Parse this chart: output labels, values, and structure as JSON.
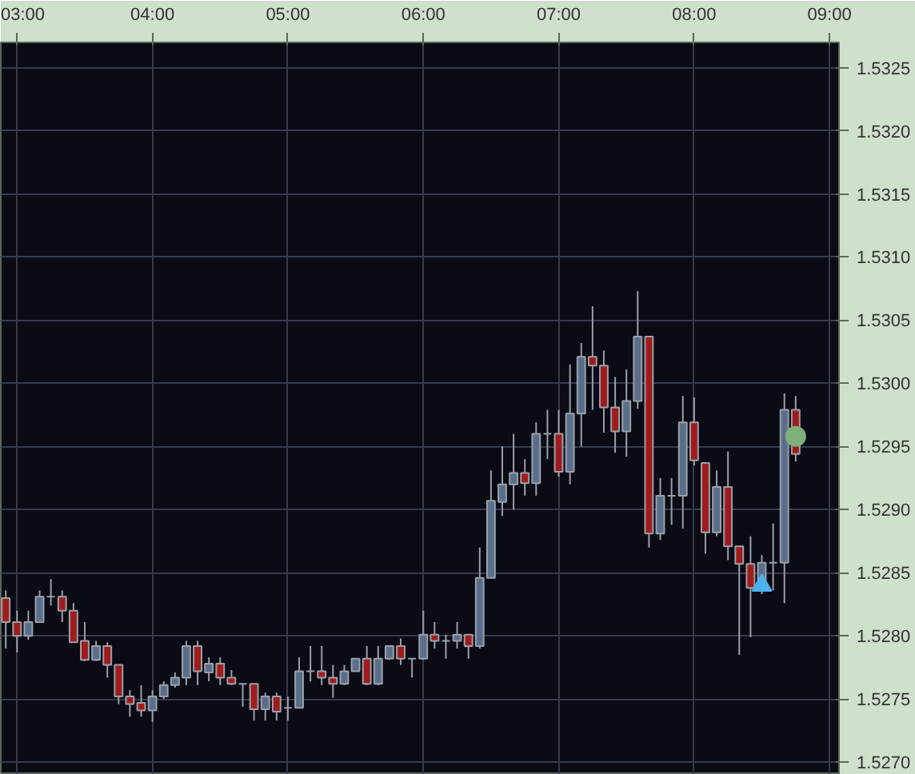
{
  "chart_data": {
    "type": "candlestick",
    "x": [
      2.9167,
      3,
      3.0833,
      3.1667,
      3.25,
      3.3333,
      3.4167,
      3.5,
      3.5833,
      3.6667,
      3.75,
      3.8333,
      3.9167,
      4,
      4.0833,
      4.1667,
      4.25,
      4.3333,
      4.4167,
      4.5,
      4.5833,
      4.6667,
      4.75,
      4.8333,
      4.9167,
      5,
      5.0833,
      5.1667,
      5.25,
      5.3333,
      5.4167,
      5.5,
      5.5833,
      5.6667,
      5.75,
      5.8333,
      5.9167,
      6,
      6.0833,
      6.1667,
      6.25,
      6.3333,
      6.4167,
      6.5,
      6.5833,
      6.6667,
      6.75,
      6.8333,
      6.9167,
      7,
      7.0833,
      7.1667,
      7.25,
      7.3333,
      7.4167,
      7.5,
      7.5833,
      7.6667,
      7.75,
      7.8333,
      7.9167,
      8,
      8.0833,
      8.1667,
      8.25,
      8.3333,
      8.4167,
      8.5,
      8.5833,
      8.6667,
      8.75
    ],
    "ohlc": [
      [
        1.5283,
        1.52836,
        1.5279,
        1.52811
      ],
      [
        1.52811,
        1.5282,
        1.52787,
        1.528
      ],
      [
        1.528,
        1.5282,
        1.52797,
        1.52811
      ],
      [
        1.52811,
        1.52836,
        1.52811,
        1.52831
      ],
      [
        1.52831,
        1.52845,
        1.52824,
        1.52831
      ],
      [
        1.52831,
        1.52836,
        1.52811,
        1.5282
      ],
      [
        1.5282,
        1.52826,
        1.52795,
        1.52795
      ],
      [
        1.52796,
        1.52811,
        1.5278,
        1.52781
      ],
      [
        1.52781,
        1.52796,
        1.5278,
        1.52792
      ],
      [
        1.52792,
        1.52795,
        1.52767,
        1.52777
      ],
      [
        1.52777,
        1.52777,
        1.52746,
        1.52752
      ],
      [
        1.52752,
        1.52757,
        1.52736,
        1.52746
      ],
      [
        1.52747,
        1.52761,
        1.52736,
        1.52741
      ],
      [
        1.52741,
        1.52757,
        1.52732,
        1.52752
      ],
      [
        1.52752,
        1.52764,
        1.5275,
        1.52761
      ],
      [
        1.52761,
        1.52771,
        1.52759,
        1.52767
      ],
      [
        1.52767,
        1.52796,
        1.52761,
        1.52792
      ],
      [
        1.52792,
        1.52796,
        1.52761,
        1.52772
      ],
      [
        1.52771,
        1.52783,
        1.52764,
        1.52778
      ],
      [
        1.52778,
        1.52783,
        1.52761,
        1.52767
      ],
      [
        1.52767,
        1.52773,
        1.52761,
        1.52762
      ],
      [
        1.52762,
        1.52762,
        1.52744,
        1.52762
      ],
      [
        1.52762,
        1.52762,
        1.52733,
        1.52742
      ],
      [
        1.52742,
        1.52755,
        1.52733,
        1.52752
      ],
      [
        1.52752,
        1.52755,
        1.52733,
        1.5274
      ],
      [
        1.52743,
        1.52752,
        1.52733,
        1.52743
      ],
      [
        1.52743,
        1.52783,
        1.52743,
        1.52772
      ],
      [
        1.52772,
        1.52792,
        1.52764,
        1.52772
      ],
      [
        1.52772,
        1.52792,
        1.52761,
        1.52767
      ],
      [
        1.52767,
        1.52777,
        1.52751,
        1.52762
      ],
      [
        1.52762,
        1.52777,
        1.52761,
        1.52772
      ],
      [
        1.52772,
        1.52782,
        1.52772,
        1.52782
      ],
      [
        1.52782,
        1.52792,
        1.52761,
        1.52762
      ],
      [
        1.52762,
        1.52792,
        1.52761,
        1.52782
      ],
      [
        1.52782,
        1.52792,
        1.52781,
        1.52792
      ],
      [
        1.52792,
        1.52798,
        1.52777,
        1.52782
      ],
      [
        1.52782,
        1.52782,
        1.52767,
        1.52782
      ],
      [
        1.52782,
        1.5282,
        1.52781,
        1.52801
      ],
      [
        1.52801,
        1.52811,
        1.5279,
        1.52796
      ],
      [
        1.52796,
        1.52801,
        1.52782,
        1.52796
      ],
      [
        1.52796,
        1.52811,
        1.5279,
        1.52801
      ],
      [
        1.52801,
        1.52801,
        1.52782,
        1.52792
      ],
      [
        1.52792,
        1.5287,
        1.5279,
        1.52846
      ],
      [
        1.52846,
        1.52931,
        1.52846,
        1.52907
      ],
      [
        1.52906,
        1.5295,
        1.52895,
        1.5292
      ],
      [
        1.5292,
        1.5296,
        1.529,
        1.52929
      ],
      [
        1.52929,
        1.5294,
        1.52911,
        1.52921
      ],
      [
        1.52921,
        1.52969,
        1.52911,
        1.5296
      ],
      [
        1.5296,
        1.52979,
        1.5294,
        1.5296
      ],
      [
        1.5296,
        1.52979,
        1.52926,
        1.5293
      ],
      [
        1.5293,
        1.53015,
        1.5292,
        1.52976
      ],
      [
        1.52976,
        1.53032,
        1.5295,
        1.53021
      ],
      [
        1.53021,
        1.53061,
        1.52979,
        1.53014
      ],
      [
        1.53014,
        1.53026,
        1.52961,
        1.52981
      ],
      [
        1.52981,
        1.53005,
        1.52945,
        1.52962
      ],
      [
        1.52962,
        1.53011,
        1.52942,
        1.52986
      ],
      [
        1.52986,
        1.53073,
        1.5298,
        1.53037
      ],
      [
        1.53037,
        1.53037,
        1.5287,
        1.52881
      ],
      [
        1.52881,
        1.52925,
        1.52876,
        1.52911
      ],
      [
        1.52911,
        1.52925,
        1.52888,
        1.52911
      ],
      [
        1.52911,
        1.5299,
        1.52885,
        1.52969
      ],
      [
        1.52969,
        1.52989,
        1.52935,
        1.52939
      ],
      [
        1.52937,
        1.52937,
        1.52865,
        1.52882
      ],
      [
        1.52882,
        1.52931,
        1.52879,
        1.52918
      ],
      [
        1.52918,
        1.52946,
        1.5286,
        1.52871
      ],
      [
        1.52871,
        1.52871,
        1.52785,
        1.52857
      ],
      [
        1.52857,
        1.52879,
        1.52799,
        1.52838
      ],
      [
        1.52836,
        1.52864,
        1.52833,
        1.52858
      ],
      [
        1.52858,
        1.52889,
        1.52836,
        1.52858
      ],
      [
        1.52858,
        1.52992,
        1.52826,
        1.52979
      ],
      [
        1.52979,
        1.5299,
        1.52938,
        1.52944
      ]
    ],
    "colors": [
      "#a01c1c",
      "#a01c1c",
      "#5a6e8c",
      "#5a6e8c",
      "#a0a4ab",
      "#a01c1c",
      "#a01c1c",
      "#a01c1c",
      "#5a6e8c",
      "#a01c1c",
      "#a01c1c",
      "#a01c1c",
      "#a01c1c",
      "#5a6e8c",
      "#5a6e8c",
      "#5a6e8c",
      "#5a6e8c",
      "#a01c1c",
      "#5a6e8c",
      "#a01c1c",
      "#a01c1c",
      "#a0a4ab",
      "#a01c1c",
      "#5a6e8c",
      "#a01c1c",
      "#a0a4ab",
      "#5a6e8c",
      "#a0a4ab",
      "#a01c1c",
      "#a01c1c",
      "#5a6e8c",
      "#5a6e8c",
      "#a01c1c",
      "#5a6e8c",
      "#5a6e8c",
      "#a01c1c",
      "#a0a4ab",
      "#5a6e8c",
      "#a01c1c",
      "#a0a4ab",
      "#5a6e8c",
      "#a01c1c",
      "#5a6e8c",
      "#5a6e8c",
      "#5a6e8c",
      "#5a6e8c",
      "#a01c1c",
      "#5a6e8c",
      "#a0a4ab",
      "#a01c1c",
      "#5a6e8c",
      "#5a6e8c",
      "#a01c1c",
      "#a01c1c",
      "#a01c1c",
      "#5a6e8c",
      "#5a6e8c",
      "#a01c1c",
      "#5a6e8c",
      "#a0a4ab",
      "#5a6e8c",
      "#a01c1c",
      "#a01c1c",
      "#5a6e8c",
      "#a01c1c",
      "#a01c1c",
      "#a01c1c",
      "#5a6e8c",
      "#a0a4ab",
      "#5a6e8c",
      "#a01c1c"
    ],
    "series": [
      {
        "type": "scatter",
        "marker": "triangle",
        "color": "#4fb0ef",
        "x": [
          8.5
        ],
        "values": [
          1.5284
        ]
      },
      {
        "type": "scatter",
        "marker": "circle",
        "color": "#7fb07a",
        "x": [
          8.75
        ],
        "values": [
          1.52958
        ]
      }
    ],
    "xlim": [
      2.88,
      9.07
    ],
    "xticks": [
      {
        "value": 3,
        "label": "03:00"
      },
      {
        "value": 4,
        "label": "04:00"
      },
      {
        "value": 5,
        "label": "05:00"
      },
      {
        "value": 6,
        "label": "06:00"
      },
      {
        "value": 7,
        "label": "07:00"
      },
      {
        "value": 8,
        "label": "08:00"
      },
      {
        "value": 9,
        "label": "09:00"
      }
    ],
    "ylim": [
      1.5269,
      1.5327
    ],
    "yticks": [
      {
        "value": 1.527,
        "label": "1.5270"
      },
      {
        "value": 1.5275,
        "label": "1.5275"
      },
      {
        "value": 1.528,
        "label": "1.5280"
      },
      {
        "value": 1.5285,
        "label": "1.5285"
      },
      {
        "value": 1.529,
        "label": "1.5290"
      },
      {
        "value": 1.5295,
        "label": "1.5295"
      },
      {
        "value": 1.53,
        "label": "1.5300"
      },
      {
        "value": 1.5305,
        "label": "1.5305"
      },
      {
        "value": 1.531,
        "label": "1.5310"
      },
      {
        "value": 1.5315,
        "label": "1.5315"
      },
      {
        "value": 1.532,
        "label": "1.5320"
      },
      {
        "value": 1.5325,
        "label": "1.5325"
      }
    ],
    "grid": true
  }
}
